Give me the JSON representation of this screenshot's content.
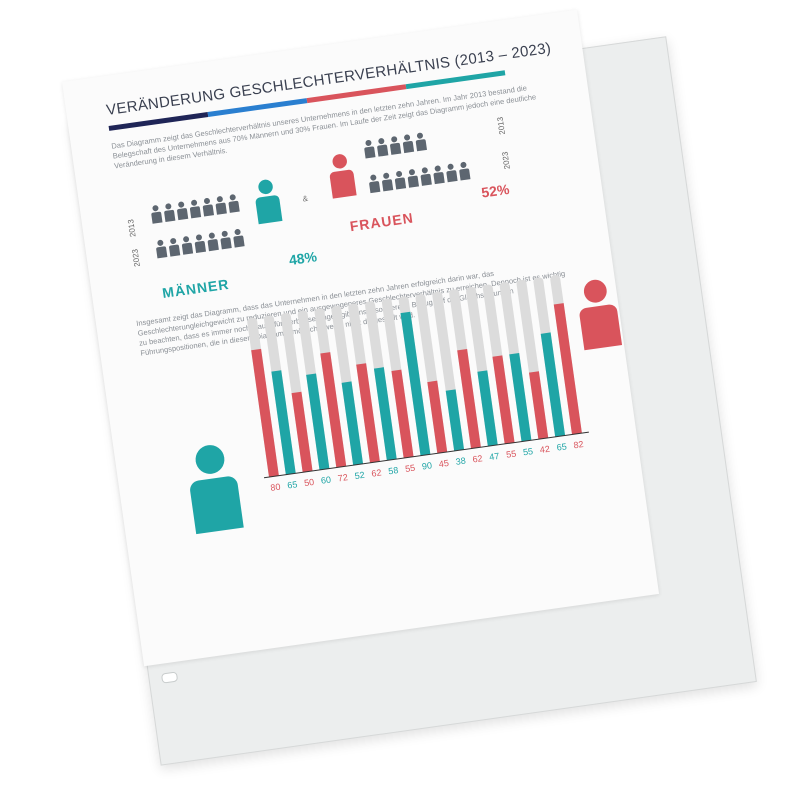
{
  "title": "VERÄNDERUNG GESCHLECHTERVERHÄLTNIS (2013 – 2023)",
  "intro": "Das Diagramm zeigt das Geschlechterverhältnis unseres Unternehmens in den letzten zehn Jahren. Im Jahr 2013 bestand die Belegschaft des Unternehmens aus 70% Männern und 30% Frauen. Im Laufe der Zeit zeigt das Diagramm jedoch eine deutliche Veränderung in diesem Verhältnis.",
  "men": {
    "label": "MÄNNER",
    "percent": "48%",
    "year_top": "2013",
    "year_bottom": "2023"
  },
  "women": {
    "label": "FRAUEN",
    "percent": "52%",
    "year_top": "2013",
    "year_bottom": "2023"
  },
  "ampersand": "&",
  "summary": "Insgesamt zeigt das Diagramm, dass das Unternehmen in den letzten zehn Jahren erfolgreich darin war, das Geschlechterungleichgewicht zu reduzieren und ein ausgewogeneres Geschlechterverhältnis zu erreichen. Dennoch ist es wichtig zu beachten, dass es immer noch Raum für Verbesserungen gibt, insbesondere in Bezug auf die Gleichstellung in Führungspositionen, die in diesem Diagramm möglicherweise nicht dargestellt wird.",
  "colors": {
    "navy": "#1f2557",
    "blue": "#2a7fd0",
    "red": "#d9545c",
    "teal": "#1fa5a6",
    "gray": "#5d6670",
    "track": "#dcdcdc"
  },
  "chart_data": {
    "type": "bar",
    "values": [
      80,
      65,
      50,
      60,
      72,
      52,
      62,
      58,
      55,
      90,
      45,
      38,
      62,
      47,
      55,
      55,
      42,
      65,
      82
    ],
    "bar_colors": [
      "red",
      "teal",
      "red",
      "teal",
      "red",
      "teal",
      "red",
      "teal",
      "red",
      "teal",
      "red",
      "teal",
      "red",
      "teal",
      "red",
      "teal",
      "red",
      "teal",
      "red"
    ],
    "ylim": [
      0,
      100
    ]
  }
}
